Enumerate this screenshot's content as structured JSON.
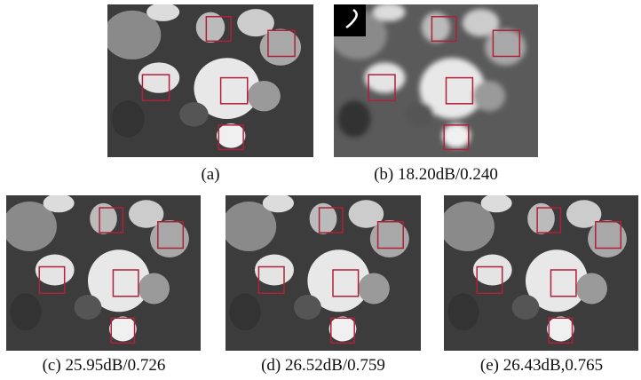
{
  "figure": {
    "panels": [
      {
        "caption": "(a)"
      },
      {
        "caption": "(b) 18.20dB/0.240"
      },
      {
        "caption": "(c) 25.95dB/0.726"
      },
      {
        "caption": "(d) 26.52dB/0.759"
      },
      {
        "caption": "(e) 26.43dB,0.765"
      }
    ]
  }
}
